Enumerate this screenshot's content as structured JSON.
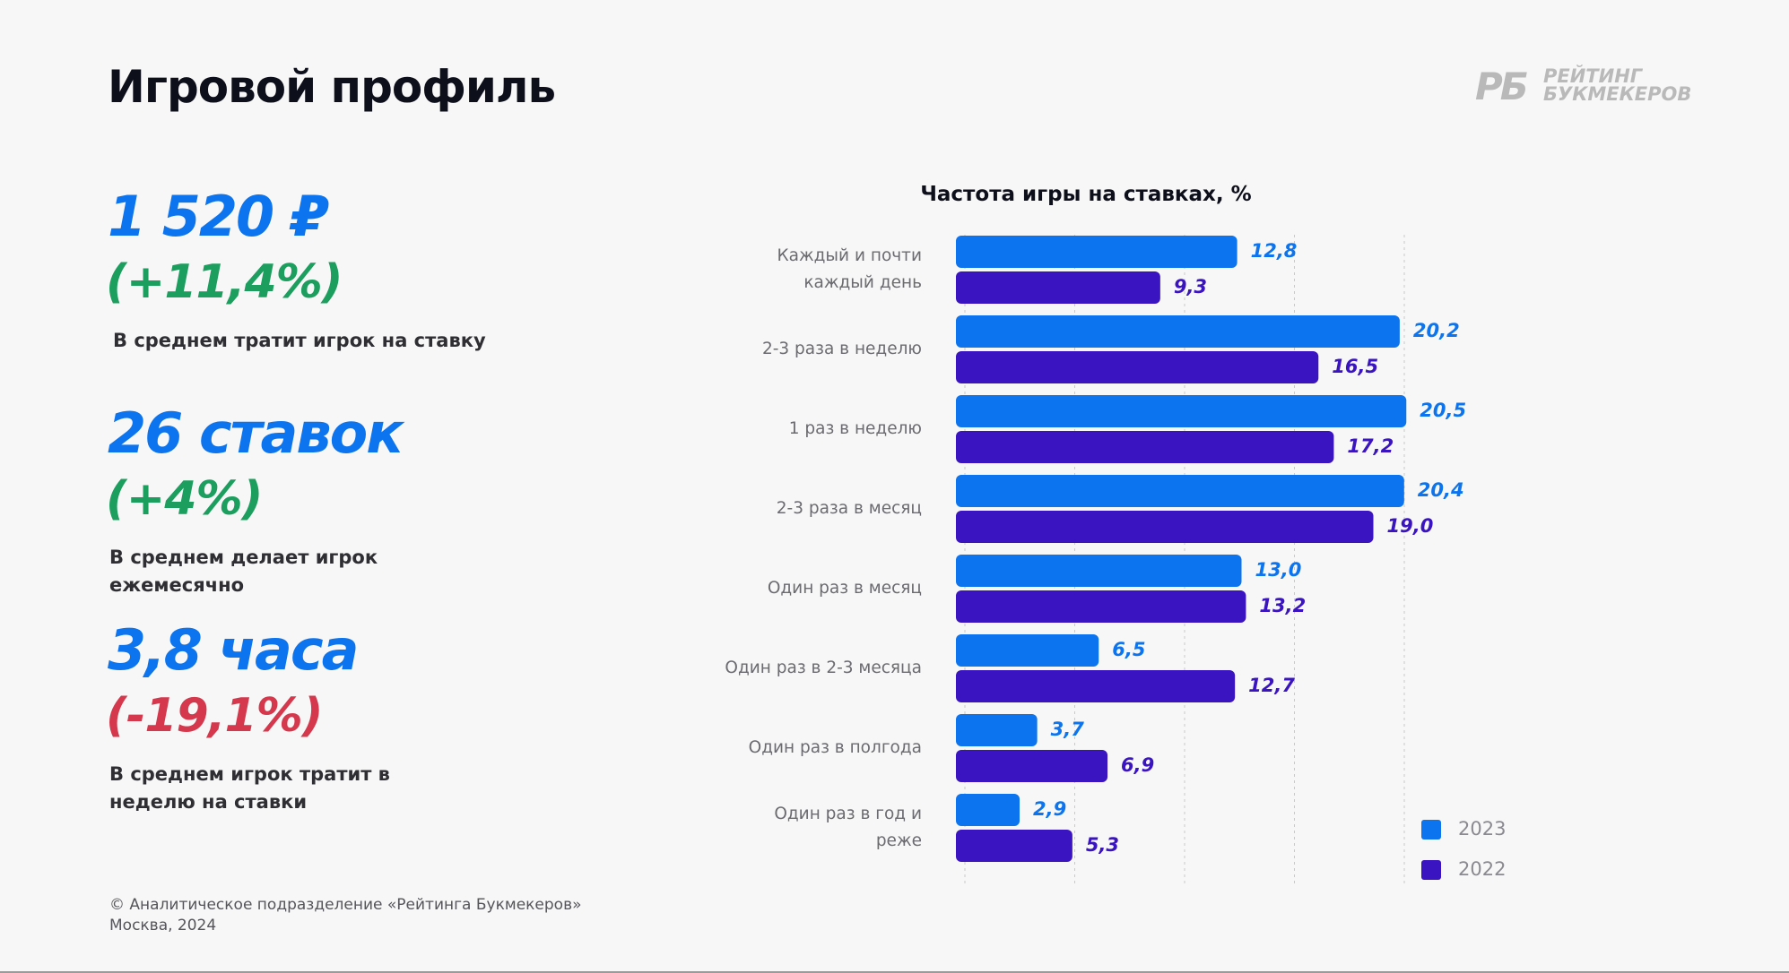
{
  "header": {
    "title": "Игровой профиль",
    "logo": {
      "mark": "РБ",
      "line1": "РЕЙТИНГ",
      "line2": "БУКМЕКЕРОВ"
    }
  },
  "stats": [
    {
      "value": "1 520 ₽",
      "change": "(+11,4%)",
      "description": "В среднем тратит игрок на ставку",
      "trend": "up"
    },
    {
      "value": "26 ставок",
      "change": "(+4%)",
      "description": "В среднем делает игрок ежемесячно",
      "trend": "up"
    },
    {
      "value": "3,8 часа",
      "change": "(-19,1%)",
      "description": "В среднем игрок тратит в неделю на ставки",
      "trend": "down"
    }
  ],
  "chart_data": {
    "type": "hbar",
    "title": "Частота игры на ставках, %",
    "categories": [
      "Каждый и почти каждый день",
      "2-3 раза в неделю",
      "1 раз в неделю",
      "2-3 раза в месяц",
      "Один раз в месяц",
      "Один раз в 2-3 месяца",
      "Один раз в полгода",
      "Один раз в год и реже"
    ],
    "series": [
      {
        "name": "2023",
        "color": "#0b74ee",
        "values": [
          12.8,
          20.2,
          20.5,
          20.4,
          13.0,
          6.5,
          3.7,
          2.9
        ],
        "value_labels": [
          "12,8",
          "20,2",
          "20,5",
          "20,4",
          "13,0",
          "6,5",
          "3,7",
          "2,9"
        ]
      },
      {
        "name": "2022",
        "color": "#3a14c0",
        "values": [
          9.3,
          16.5,
          17.2,
          19.0,
          13.2,
          12.7,
          6.9,
          5.3
        ],
        "value_labels": [
          "9,3",
          "16,5",
          "17,2",
          "19,0",
          "13,2",
          "12,7",
          "6,9",
          "5,3"
        ]
      }
    ],
    "xlim": [
      0,
      22
    ],
    "xticks": [
      0,
      5,
      10,
      15,
      20
    ],
    "grid": true,
    "legend": "bottom-right"
  },
  "footer": {
    "line1": "© Аналитическое подразделение «Рейтинга Букмекеров»",
    "line2": "Москва, 2024"
  }
}
